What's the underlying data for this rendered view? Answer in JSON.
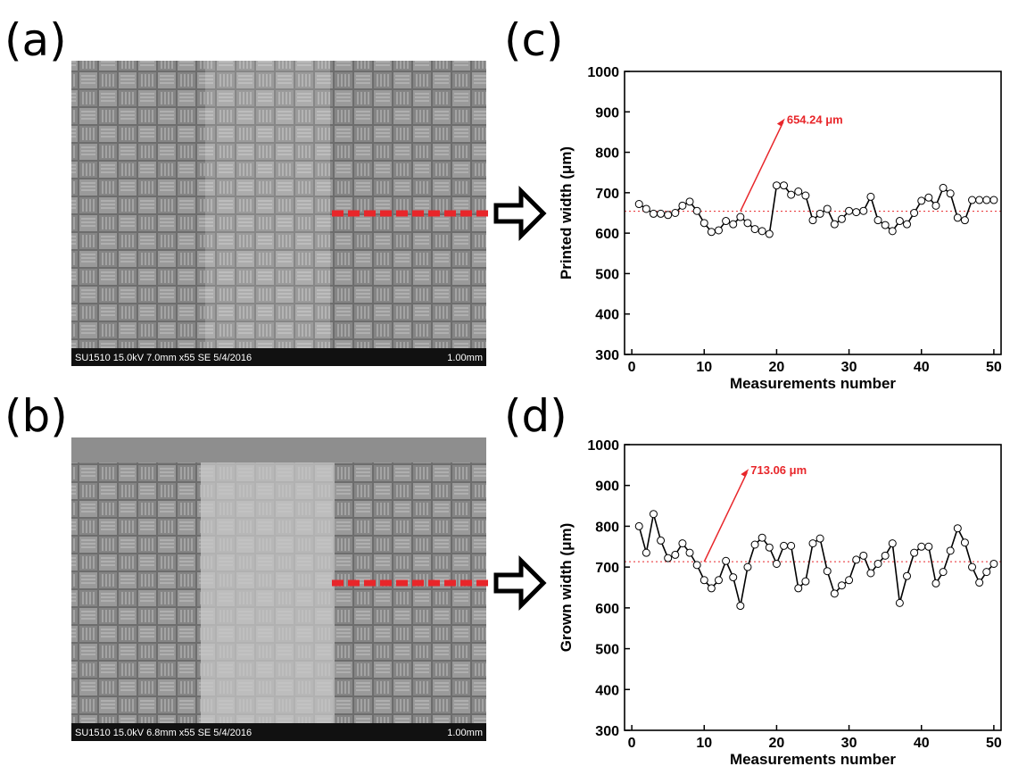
{
  "panels": [
    {
      "label": "(a)",
      "caption": "SU1510 15.0kV 7.0mm x55 SE  5/4/2016",
      "scale": "1.00mm"
    },
    {
      "label": "(b)",
      "caption": "SU1510 15.0kV 6.8mm x55 SE  5/4/2016",
      "scale": "1.00mm"
    }
  ],
  "chart_data": [
    {
      "type": "line",
      "panel_label": "(c)",
      "x_label": "Measurements number",
      "y_label": "Printed width (μm)",
      "color": "#000000",
      "marker": "circle-open",
      "x": [
        1,
        2,
        3,
        4,
        5,
        6,
        7,
        8,
        9,
        10,
        11,
        12,
        13,
        14,
        15,
        16,
        17,
        18,
        19,
        20,
        21,
        22,
        23,
        24,
        25,
        26,
        27,
        28,
        29,
        30,
        31,
        32,
        33,
        34,
        35,
        36,
        37,
        38,
        39,
        40,
        41,
        42,
        43,
        44,
        45,
        46,
        47,
        48,
        49,
        50
      ],
      "values": [
        672,
        660,
        648,
        648,
        645,
        650,
        668,
        678,
        655,
        625,
        603,
        607,
        630,
        622,
        640,
        625,
        610,
        605,
        598,
        718,
        718,
        695,
        703,
        693,
        632,
        648,
        660,
        622,
        635,
        655,
        652,
        655,
        690,
        632,
        620,
        605,
        630,
        622,
        650,
        680,
        688,
        668,
        712,
        698,
        638,
        632,
        682,
        682,
        682,
        682
      ],
      "reference_line": {
        "value": 654.24,
        "label": "654.24 μm",
        "color": "#e8262a"
      },
      "xlim": [
        -1,
        51
      ],
      "xticks": [
        0,
        10,
        20,
        30,
        40,
        50
      ],
      "ylim": [
        300,
        1000
      ],
      "yticks": [
        300,
        400,
        500,
        600,
        700,
        800,
        900,
        1000
      ]
    },
    {
      "type": "line",
      "panel_label": "(d)",
      "x_label": "Measurements number",
      "y_label": "Grown width (μm)",
      "color": "#000000",
      "marker": "circle-open",
      "x": [
        1,
        2,
        3,
        4,
        5,
        6,
        7,
        8,
        9,
        10,
        11,
        12,
        13,
        14,
        15,
        16,
        17,
        18,
        19,
        20,
        21,
        22,
        23,
        24,
        25,
        26,
        27,
        28,
        29,
        30,
        31,
        32,
        33,
        34,
        35,
        36,
        37,
        38,
        39,
        40,
        41,
        42,
        43,
        44,
        45,
        46,
        47,
        48,
        49,
        50
      ],
      "values": [
        800,
        735,
        830,
        765,
        722,
        730,
        758,
        735,
        705,
        668,
        648,
        668,
        715,
        675,
        605,
        700,
        755,
        772,
        748,
        708,
        752,
        752,
        648,
        665,
        758,
        770,
        690,
        635,
        655,
        668,
        718,
        728,
        685,
        708,
        728,
        758,
        612,
        678,
        735,
        750,
        750,
        660,
        688,
        740,
        795,
        760,
        700,
        662,
        688,
        708
      ],
      "reference_line": {
        "value": 713.06,
        "label": "713.06 μm",
        "color": "#e8262a"
      },
      "xlim": [
        -1,
        51
      ],
      "xticks": [
        0,
        10,
        20,
        30,
        40,
        50
      ],
      "ylim": [
        300,
        1000
      ],
      "yticks": [
        300,
        400,
        500,
        600,
        700,
        800,
        900,
        1000
      ]
    }
  ]
}
